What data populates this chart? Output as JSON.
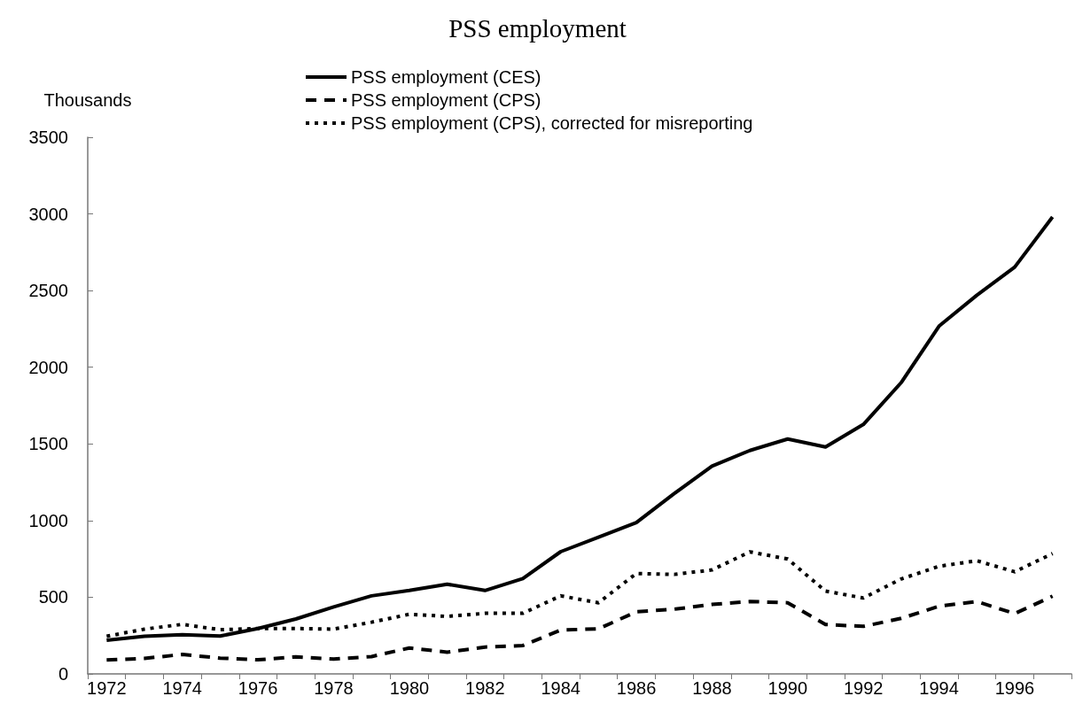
{
  "chart_data": {
    "type": "line",
    "title": "PSS employment",
    "ylabel": "Thousands",
    "categories": [
      "1972",
      null,
      "1974",
      null,
      "1976",
      null,
      "1978",
      null,
      "1980",
      null,
      "1982",
      null,
      "1984",
      null,
      "1986",
      null,
      "1988",
      null,
      "1990",
      null,
      "1992",
      null,
      "1994",
      null,
      "1996",
      null
    ],
    "series": [
      {
        "name": "PSS employment (CES)",
        "color": "#000000",
        "line_style": "solid",
        "values": [
          220,
          245,
          255,
          247,
          296,
          358,
          437,
          509,
          544,
          585,
          544,
          622,
          797,
          892,
          987,
          1176,
          1355,
          1457,
          1532,
          1480,
          1627,
          1900,
          2268,
          2470,
          2653,
          2980
        ]
      },
      {
        "name": "PSS employment (CPS)",
        "color": "#000000",
        "line_style": "dashed",
        "values": [
          91,
          101,
          127,
          103,
          92,
          111,
          97,
          113,
          169,
          142,
          175,
          185,
          286,
          294,
          405,
          422,
          453,
          472,
          464,
          322,
          310,
          362,
          441,
          472,
          393,
          507
        ]
      },
      {
        "name": "PSS employment (CPS), corrected for misreporting",
        "color": "#000000",
        "line_style": "dotted",
        "values": [
          245,
          292,
          323,
          288,
          296,
          296,
          292,
          337,
          389,
          375,
          395,
          395,
          509,
          464,
          655,
          649,
          678,
          796,
          749,
          540,
          495,
          619,
          702,
          738,
          666,
          785
        ]
      }
    ],
    "ylim": [
      0,
      3500
    ],
    "yticks": [
      0,
      500,
      1000,
      1500,
      2000,
      2500,
      3000,
      3500
    ],
    "grid": false,
    "legend": "top",
    "marker": "none"
  }
}
